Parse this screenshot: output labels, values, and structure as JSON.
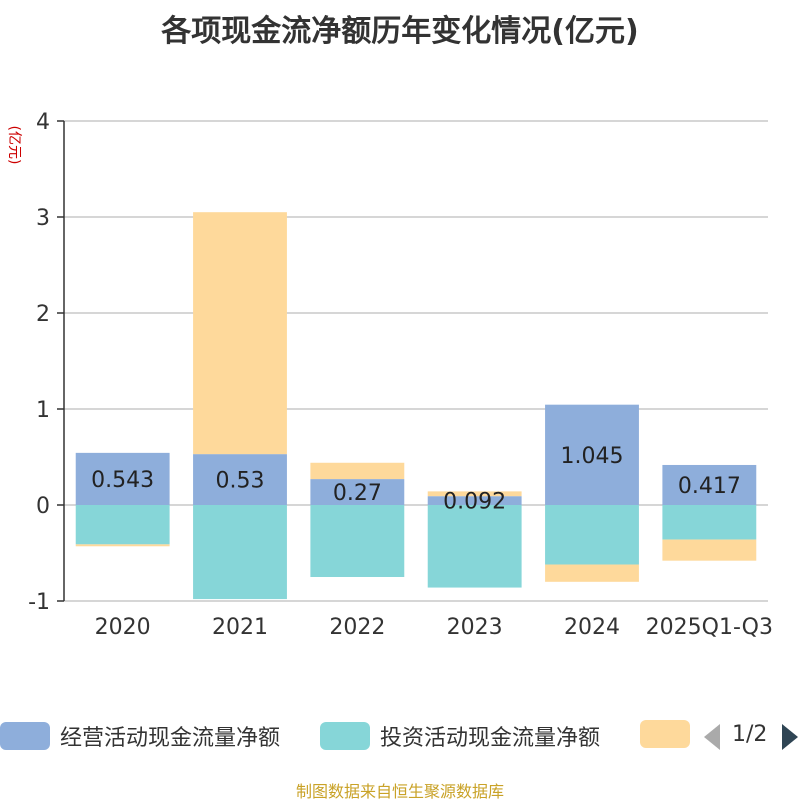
{
  "title": "各项现金流净额历年变化情况(亿元)",
  "source": "制图数据来自恒生聚源数据库",
  "pager": {
    "text": "1/2"
  },
  "colors": {
    "operating": "#8eaedb",
    "investing": "#86d6d8",
    "financing": "#fed99b"
  },
  "legend": [
    {
      "name": "经营活动现金流量净额",
      "color": "#8eaedb"
    },
    {
      "name": "投资活动现金流量净额",
      "color": "#86d6d8"
    },
    {
      "name": "",
      "color": "#fed99b"
    }
  ],
  "chart_data": {
    "type": "bar",
    "stacked": true,
    "title": "各项现金流净额历年变化情况(亿元)",
    "ylabel": "(亿元)",
    "xlabel": "",
    "ylim": [
      -1,
      4
    ],
    "yticks": [
      4,
      3,
      2,
      1,
      0,
      -1
    ],
    "grid": true,
    "legend_position": "bottom",
    "categories": [
      "2020",
      "2021",
      "2022",
      "2023",
      "2024",
      "2025Q1-Q3"
    ],
    "series": [
      {
        "name": "经营活动现金流量净额",
        "values": [
          0.543,
          0.53,
          0.27,
          0.092,
          1.045,
          0.417
        ],
        "labels": [
          "0.543",
          "0.53",
          "0.27",
          "0.092",
          "1.045",
          "0.417"
        ]
      },
      {
        "name": "投资活动现金流量净额",
        "values": [
          -0.41,
          -0.98,
          -0.75,
          -0.86,
          -0.62,
          -0.36
        ]
      },
      {
        "values": [
          -0.02,
          2.52,
          0.17,
          0.05,
          -0.18,
          -0.22
        ]
      }
    ]
  }
}
